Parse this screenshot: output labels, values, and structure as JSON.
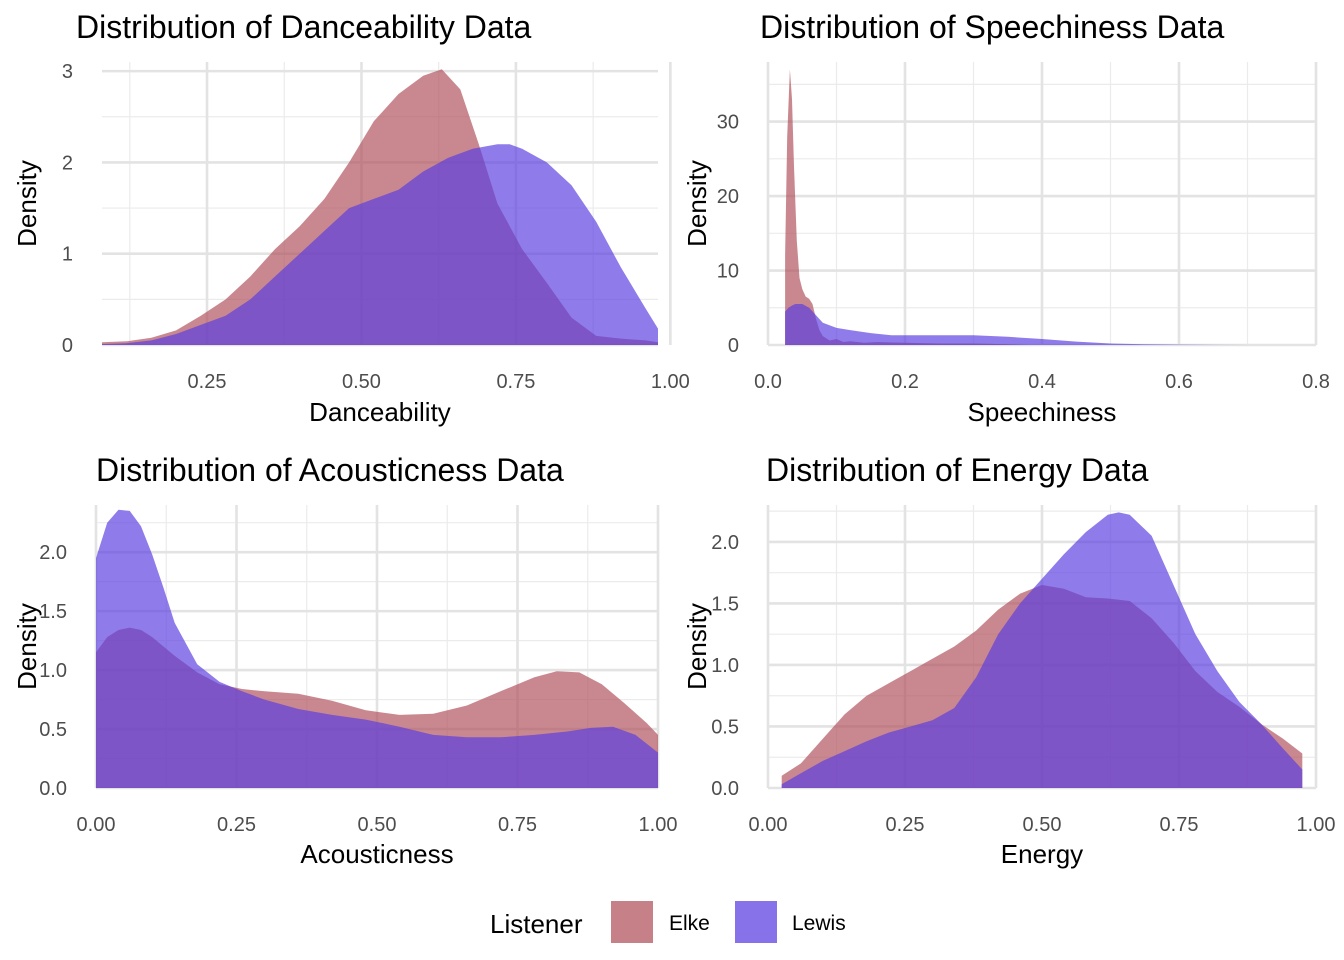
{
  "legend": {
    "title": "Listener",
    "entries": [
      {
        "name": "Elke",
        "color": "#b0505a"
      },
      {
        "name": "Lewis",
        "color": "#5a3ce0"
      }
    ],
    "placement": "bottom"
  },
  "chart_data": [
    {
      "type": "area",
      "title": "Distribution of Danceability Data",
      "xlabel": "Danceability",
      "ylabel": "Density",
      "xlim": [
        0.08,
        0.98
      ],
      "ylim": [
        0,
        3.1
      ],
      "xticks": [
        {
          "v": 0.25,
          "label": "0.25"
        },
        {
          "v": 0.5,
          "label": "0.50"
        },
        {
          "v": 0.75,
          "label": "0.75"
        },
        {
          "v": 1.0,
          "label": "1.00"
        }
      ],
      "yticks": [
        {
          "v": 0,
          "label": "0"
        },
        {
          "v": 1,
          "label": "1"
        },
        {
          "v": 2,
          "label": "2"
        },
        {
          "v": 3,
          "label": "3"
        }
      ],
      "series": [
        {
          "name": "Elke",
          "color": "#b0505a",
          "x": [
            0.08,
            0.12,
            0.16,
            0.2,
            0.24,
            0.28,
            0.32,
            0.36,
            0.4,
            0.44,
            0.48,
            0.52,
            0.56,
            0.6,
            0.63,
            0.66,
            0.69,
            0.72,
            0.76,
            0.8,
            0.84,
            0.88,
            0.92,
            0.96,
            0.98
          ],
          "y": [
            0.03,
            0.04,
            0.08,
            0.16,
            0.32,
            0.5,
            0.75,
            1.05,
            1.3,
            1.6,
            2.0,
            2.45,
            2.75,
            2.95,
            3.02,
            2.8,
            2.2,
            1.55,
            1.05,
            0.68,
            0.3,
            0.1,
            0.07,
            0.05,
            0.03
          ]
        },
        {
          "name": "Lewis",
          "color": "#5a3ce0",
          "x": [
            0.08,
            0.12,
            0.16,
            0.2,
            0.24,
            0.28,
            0.32,
            0.36,
            0.4,
            0.44,
            0.48,
            0.52,
            0.56,
            0.6,
            0.64,
            0.68,
            0.72,
            0.74,
            0.76,
            0.8,
            0.84,
            0.88,
            0.92,
            0.96,
            0.98
          ],
          "y": [
            0.01,
            0.02,
            0.05,
            0.12,
            0.22,
            0.32,
            0.5,
            0.75,
            1.0,
            1.25,
            1.5,
            1.6,
            1.7,
            1.9,
            2.05,
            2.15,
            2.2,
            2.2,
            2.15,
            2.0,
            1.75,
            1.35,
            0.85,
            0.4,
            0.18
          ]
        }
      ]
    },
    {
      "type": "area",
      "title": "Distribution of Speechiness Data",
      "xlabel": "Speechiness",
      "ylabel": "Density",
      "xlim": [
        0.0,
        0.8
      ],
      "ylim": [
        0,
        38
      ],
      "xticks": [
        {
          "v": 0.0,
          "label": "0.0"
        },
        {
          "v": 0.2,
          "label": "0.2"
        },
        {
          "v": 0.4,
          "label": "0.4"
        },
        {
          "v": 0.6,
          "label": "0.6"
        },
        {
          "v": 0.8,
          "label": "0.8"
        }
      ],
      "yticks": [
        {
          "v": 0,
          "label": "0"
        },
        {
          "v": 10,
          "label": "10"
        },
        {
          "v": 20,
          "label": "20"
        },
        {
          "v": 30,
          "label": "30"
        }
      ],
      "series": [
        {
          "name": "Elke",
          "color": "#b0505a",
          "x": [
            0.025,
            0.028,
            0.032,
            0.035,
            0.038,
            0.042,
            0.046,
            0.05,
            0.055,
            0.06,
            0.065,
            0.07,
            0.075,
            0.08,
            0.09,
            0.1,
            0.11,
            0.12,
            0.14,
            0.16,
            0.2,
            0.25,
            0.3,
            0.35,
            0.38
          ],
          "y": [
            12.0,
            28.0,
            37.0,
            33.0,
            24.0,
            14.0,
            9.0,
            7.5,
            6.5,
            6.2,
            5.5,
            3.5,
            2.0,
            1.2,
            0.6,
            0.8,
            0.4,
            0.5,
            0.3,
            0.4,
            0.3,
            0.2,
            0.2,
            0.1,
            0.0
          ]
        },
        {
          "name": "Lewis",
          "color": "#5a3ce0",
          "x": [
            0.025,
            0.03,
            0.035,
            0.04,
            0.05,
            0.06,
            0.07,
            0.08,
            0.1,
            0.12,
            0.15,
            0.18,
            0.2,
            0.25,
            0.3,
            0.35,
            0.4,
            0.45,
            0.5,
            0.55,
            0.6,
            0.65,
            0.7
          ],
          "y": [
            4.5,
            5.0,
            5.3,
            5.5,
            5.5,
            5.0,
            4.0,
            3.0,
            2.3,
            2.0,
            1.6,
            1.3,
            1.3,
            1.3,
            1.3,
            1.1,
            0.8,
            0.45,
            0.2,
            0.1,
            0.05,
            0.02,
            0.0
          ]
        }
      ]
    },
    {
      "type": "area",
      "title": "Distribution of Acousticness Data",
      "xlabel": "Acousticness",
      "ylabel": "Density",
      "xlim": [
        0.0,
        1.0
      ],
      "ylim": [
        0,
        2.4
      ],
      "xticks": [
        {
          "v": 0.0,
          "label": "0.00"
        },
        {
          "v": 0.25,
          "label": "0.25"
        },
        {
          "v": 0.5,
          "label": "0.50"
        },
        {
          "v": 0.75,
          "label": "0.75"
        },
        {
          "v": 1.0,
          "label": "1.00"
        }
      ],
      "yticks": [
        {
          "v": 0,
          "label": "0.0"
        },
        {
          "v": 0.5,
          "label": "0.5"
        },
        {
          "v": 1.0,
          "label": "1.0"
        },
        {
          "v": 1.5,
          "label": "1.5"
        },
        {
          "v": 2.0,
          "label": "2.0"
        }
      ],
      "series": [
        {
          "name": "Elke",
          "color": "#b0505a",
          "x": [
            0.0,
            0.02,
            0.04,
            0.06,
            0.08,
            0.1,
            0.14,
            0.18,
            0.22,
            0.26,
            0.3,
            0.36,
            0.42,
            0.48,
            0.54,
            0.6,
            0.66,
            0.72,
            0.78,
            0.82,
            0.86,
            0.9,
            0.94,
            0.98,
            1.0
          ],
          "y": [
            1.15,
            1.28,
            1.34,
            1.36,
            1.34,
            1.28,
            1.12,
            0.98,
            0.88,
            0.84,
            0.82,
            0.8,
            0.74,
            0.66,
            0.62,
            0.63,
            0.7,
            0.82,
            0.94,
            0.99,
            0.98,
            0.88,
            0.72,
            0.55,
            0.45
          ]
        },
        {
          "name": "Lewis",
          "color": "#5a3ce0",
          "x": [
            0.0,
            0.02,
            0.04,
            0.06,
            0.08,
            0.1,
            0.12,
            0.14,
            0.18,
            0.22,
            0.26,
            0.3,
            0.36,
            0.42,
            0.48,
            0.54,
            0.6,
            0.66,
            0.72,
            0.78,
            0.84,
            0.88,
            0.92,
            0.96,
            1.0
          ],
          "y": [
            1.95,
            2.25,
            2.36,
            2.35,
            2.22,
            1.98,
            1.7,
            1.4,
            1.05,
            0.9,
            0.82,
            0.75,
            0.67,
            0.62,
            0.58,
            0.52,
            0.45,
            0.43,
            0.43,
            0.45,
            0.48,
            0.51,
            0.52,
            0.45,
            0.3
          ]
        }
      ]
    },
    {
      "type": "area",
      "title": "Distribution of Energy Data",
      "xlabel": "Energy",
      "ylabel": "Density",
      "xlim": [
        0.0,
        1.0
      ],
      "ylim": [
        0,
        2.3
      ],
      "xticks": [
        {
          "v": 0.0,
          "label": "0.00"
        },
        {
          "v": 0.25,
          "label": "0.25"
        },
        {
          "v": 0.5,
          "label": "0.50"
        },
        {
          "v": 0.75,
          "label": "0.75"
        },
        {
          "v": 1.0,
          "label": "1.00"
        }
      ],
      "yticks": [
        {
          "v": 0,
          "label": "0.0"
        },
        {
          "v": 0.5,
          "label": "0.5"
        },
        {
          "v": 1.0,
          "label": "1.0"
        },
        {
          "v": 1.5,
          "label": "1.5"
        },
        {
          "v": 2.0,
          "label": "2.0"
        }
      ],
      "series": [
        {
          "name": "Elke",
          "color": "#b0505a",
          "x": [
            0.025,
            0.06,
            0.1,
            0.14,
            0.18,
            0.22,
            0.26,
            0.3,
            0.34,
            0.38,
            0.42,
            0.46,
            0.5,
            0.54,
            0.58,
            0.62,
            0.66,
            0.7,
            0.74,
            0.78,
            0.82,
            0.86,
            0.9,
            0.94,
            0.975
          ],
          "y": [
            0.1,
            0.2,
            0.4,
            0.6,
            0.75,
            0.85,
            0.95,
            1.05,
            1.15,
            1.28,
            1.45,
            1.58,
            1.65,
            1.62,
            1.55,
            1.54,
            1.52,
            1.38,
            1.18,
            0.95,
            0.78,
            0.66,
            0.52,
            0.4,
            0.28
          ]
        },
        {
          "name": "Lewis",
          "color": "#5a3ce0",
          "x": [
            0.025,
            0.06,
            0.1,
            0.14,
            0.18,
            0.22,
            0.26,
            0.3,
            0.34,
            0.38,
            0.42,
            0.46,
            0.5,
            0.54,
            0.58,
            0.62,
            0.64,
            0.66,
            0.7,
            0.74,
            0.78,
            0.82,
            0.86,
            0.9,
            0.94,
            0.975
          ],
          "y": [
            0.03,
            0.12,
            0.22,
            0.3,
            0.38,
            0.45,
            0.5,
            0.55,
            0.65,
            0.9,
            1.25,
            1.5,
            1.7,
            1.9,
            2.08,
            2.22,
            2.24,
            2.22,
            2.05,
            1.65,
            1.25,
            0.95,
            0.7,
            0.52,
            0.32,
            0.15
          ]
        }
      ]
    }
  ]
}
